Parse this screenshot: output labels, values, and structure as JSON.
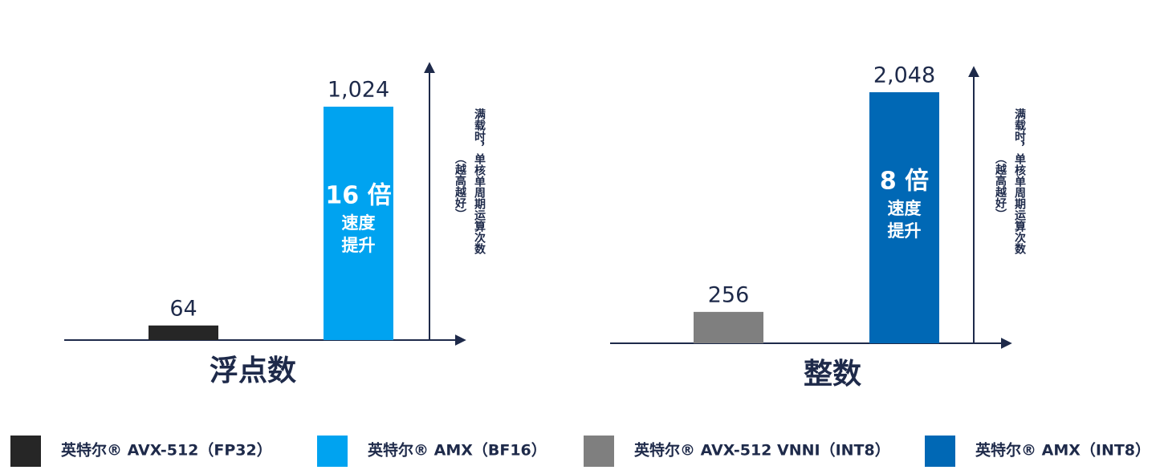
{
  "chart_data": [
    {
      "type": "bar",
      "title": "浮点数",
      "ylabel": [
        "满载时，单核单周期运算次数",
        "（越高越好）"
      ],
      "annotation": [
        "16 倍",
        "速度",
        "提升"
      ],
      "series": [
        {
          "name": "英特尔® AVX-512（FP32）",
          "color": "#262626",
          "values": [
            64
          ]
        },
        {
          "name": "英特尔® AMX（BF16）",
          "color": "#00a3f0",
          "values": [
            1024
          ],
          "value_labels": [
            "1,024"
          ]
        }
      ]
    },
    {
      "type": "bar",
      "title": "整数",
      "ylabel": [
        "满载时，单核单周期运算次数",
        "（越高越好）"
      ],
      "annotation": [
        "8 倍",
        "速度",
        "提升"
      ],
      "series": [
        {
          "name": "英特尔® AVX-512 VNNI（INT8）",
          "color": "#7f7f7f",
          "values": [
            256
          ]
        },
        {
          "name": "英特尔® AMX（INT8）",
          "color": "#0068b5",
          "values": [
            2048
          ],
          "value_labels": [
            "2,048"
          ]
        }
      ]
    }
  ]
}
